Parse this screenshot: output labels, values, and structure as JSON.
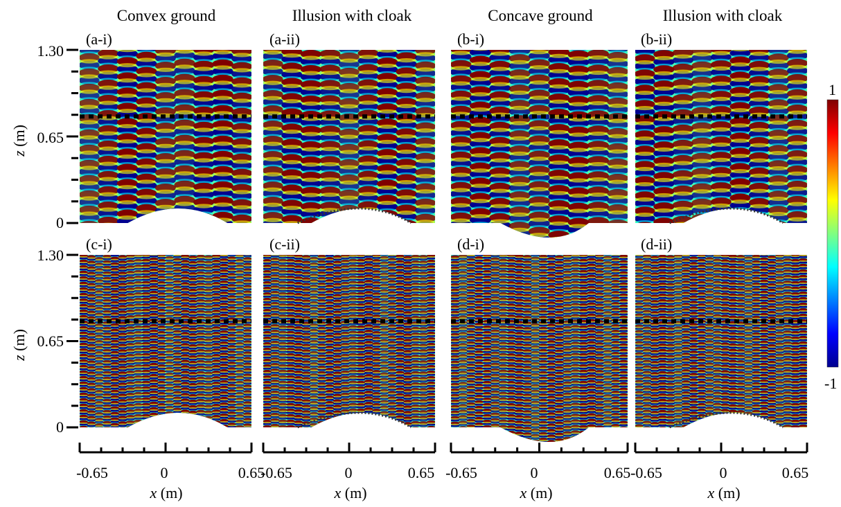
{
  "columns": [
    {
      "title": "Convex ground"
    },
    {
      "title": "Illusion with cloak"
    },
    {
      "title": "Concave ground"
    },
    {
      "title": "Illusion with cloak"
    }
  ],
  "panels": [
    {
      "label": "(a-i)",
      "ground": "convex",
      "cloak": false,
      "freq": "low"
    },
    {
      "label": "(a-ii)",
      "ground": "convex",
      "cloak": true,
      "freq": "low"
    },
    {
      "label": "(b-i)",
      "ground": "concave",
      "cloak": false,
      "freq": "low"
    },
    {
      "label": "(b-ii)",
      "ground": "convex",
      "cloak": true,
      "freq": "low"
    },
    {
      "label": "(c-i)",
      "ground": "convex",
      "cloak": false,
      "freq": "high"
    },
    {
      "label": "(c-ii)",
      "ground": "convex",
      "cloak": true,
      "freq": "high"
    },
    {
      "label": "(d-i)",
      "ground": "concave",
      "cloak": false,
      "freq": "high"
    },
    {
      "label": "(d-ii)",
      "ground": "convex",
      "cloak": true,
      "freq": "high"
    }
  ],
  "y_axis": {
    "label_var": "z",
    "label_unit": "(m)",
    "ticks": [
      "1.30",
      "0.65",
      "0"
    ],
    "range": [
      0,
      1.3
    ]
  },
  "x_axis": {
    "label_var": "x",
    "label_unit": "(m)",
    "ticks": [
      "-0.65",
      "0",
      "0.65"
    ],
    "range": [
      -0.65,
      0.65
    ]
  },
  "colorbar": {
    "max_label": "1",
    "min_label": "-1",
    "colors": [
      "#00008f",
      "#0000ff",
      "#0080ff",
      "#00ffff",
      "#80ff80",
      "#ffff00",
      "#ff8000",
      "#ff0000",
      "#800000"
    ]
  },
  "dashed_line_z": 0.8
}
